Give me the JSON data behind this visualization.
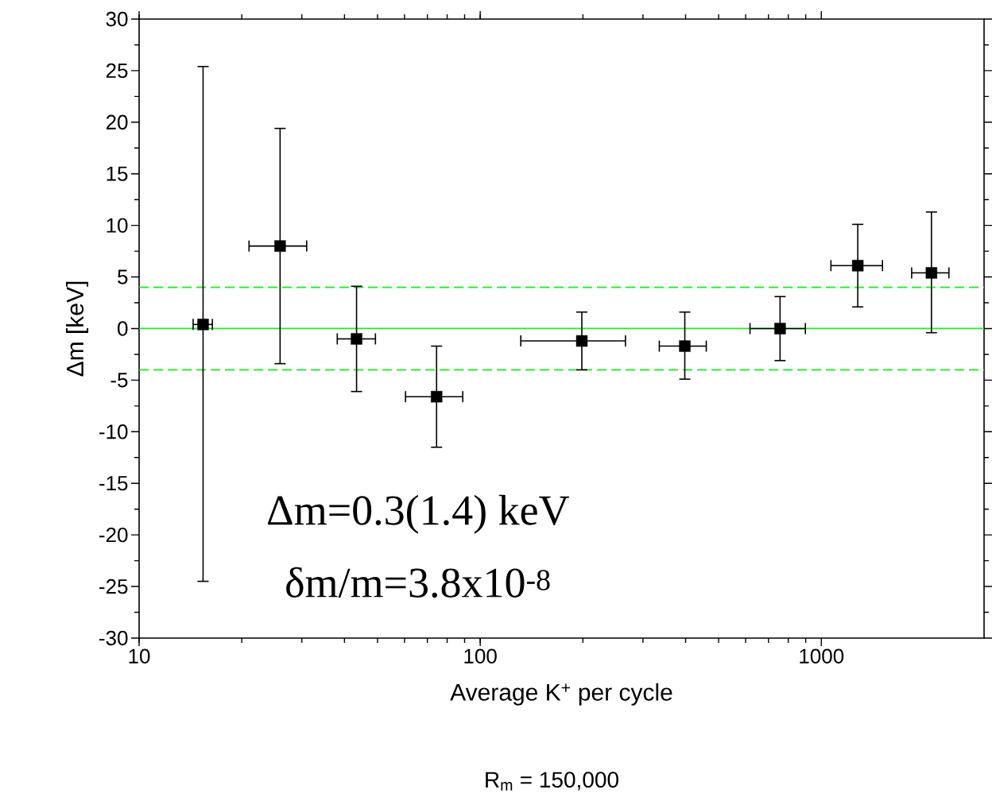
{
  "chart_data": {
    "type": "scatter",
    "xlabel": "Average K$^{+}$ per cycle",
    "ylabel": "Δm [keV]",
    "log": "x",
    "xlim": [
      10,
      3000
    ],
    "ylim": [
      -30,
      30
    ],
    "xticks": [
      10,
      100,
      1000
    ],
    "yticks": [
      -30,
      -25,
      -20,
      -15,
      -10,
      -5,
      0,
      5,
      10,
      15,
      20,
      25,
      30
    ],
    "x": [
      15.4,
      25.9,
      43.4,
      74.5,
      198.6,
      398,
      757,
      1279,
      2103
    ],
    "values": [
      0.4,
      8,
      -1,
      -6.6,
      -1.2,
      -1.7,
      0,
      6.1,
      5.4
    ],
    "errors": [
      [
        -24.5,
        25.4
      ],
      [
        -3.4,
        19.4
      ],
      [
        -6.1,
        4.1
      ],
      [
        -11.5,
        -1.7
      ],
      [
        -4.0,
        1.6
      ],
      [
        -4.9,
        1.6
      ],
      [
        -3.1,
        3.1
      ],
      [
        2.1,
        10.1
      ],
      [
        -0.4,
        11.3
      ]
    ],
    "xerrors": [
      [
        14.4,
        16.4
      ],
      [
        21.0,
        31.0
      ],
      [
        38.1,
        49.3
      ],
      [
        60.4,
        88.9
      ],
      [
        131.5,
        266.6
      ],
      [
        335,
        460
      ],
      [
        618,
        898
      ],
      [
        1067,
        1511
      ],
      [
        1840,
        2366
      ]
    ],
    "color": "#000000",
    "marker": "square",
    "grid": false,
    "ref_lines": [
      {
        "axis": "y",
        "value": 0,
        "color": "#22ee22",
        "line_style": "solid"
      },
      {
        "axis": "y",
        "value": 4,
        "color": "#22ee22",
        "line_style": "dashed"
      },
      {
        "axis": "y",
        "value": -4,
        "color": "#22ee22",
        "line_style": "dashed"
      }
    ],
    "annotations": [
      "Δm=0.3(1.4) keV",
      "δm/m=3.8x10$^{-8}$",
      "R$_{m}$ = 150,000"
    ]
  }
}
